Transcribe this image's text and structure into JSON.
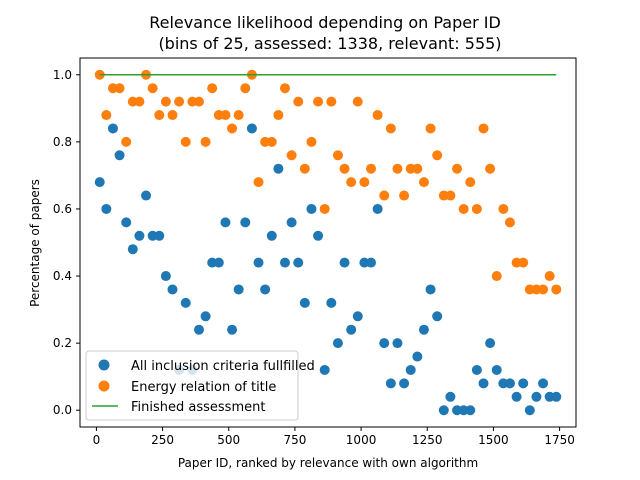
{
  "chart_data": {
    "type": "scatter",
    "title": "Relevance likelihood depending on Paper ID",
    "subtitle": "(bins of 25, assessed: 1338, relevant: 555)",
    "xlabel": "Paper ID, ranked by relevance with own algorithm",
    "ylabel": "Percentage of papers",
    "xlim": [
      -62,
      1812
    ],
    "ylim": [
      -0.05,
      1.05
    ],
    "x_ticks": [
      0,
      250,
      500,
      750,
      1000,
      1250,
      1500,
      1750
    ],
    "x_tick_labels": [
      "0",
      "250",
      "500",
      "750",
      "1000",
      "1250",
      "1500",
      "1750"
    ],
    "y_ticks": [
      0.0,
      0.2,
      0.4,
      0.6,
      0.8,
      1.0
    ],
    "y_tick_labels": [
      "0.0",
      "0.2",
      "0.4",
      "0.6",
      "0.8",
      "1.0"
    ],
    "grid": false,
    "legend_position": "lower-left",
    "series": [
      {
        "name": "All inclusion criteria fullfilled",
        "kind": "scatter",
        "color": "#1f77b4",
        "x": [
          12.5,
          37.5,
          62.5,
          87.5,
          112.5,
          137.5,
          162.5,
          187.5,
          212.5,
          237.5,
          262.5,
          287.5,
          312.5,
          337.5,
          362.5,
          387.5,
          412.5,
          437.5,
          462.5,
          487.5,
          512.5,
          537.5,
          562.5,
          587.5,
          612.5,
          637.5,
          662.5,
          687.5,
          712.5,
          737.5,
          762.5,
          787.5,
          812.5,
          837.5,
          862.5,
          887.5,
          912.5,
          937.5,
          962.5,
          987.5,
          1012.5,
          1037.5,
          1062.5,
          1087.5,
          1112.5,
          1137.5,
          1162.5,
          1187.5,
          1212.5,
          1237.5,
          1262.5,
          1287.5,
          1312.5,
          1337.5,
          1362.5,
          1387.5,
          1412.5,
          1437.5,
          1462.5,
          1487.5,
          1512.5,
          1537.5,
          1562.5,
          1587.5,
          1612.5,
          1637.5,
          1662.5,
          1687.5,
          1712.5,
          1737.5
        ],
        "y": [
          0.68,
          0.6,
          0.84,
          0.76,
          0.56,
          0.48,
          0.52,
          0.64,
          0.52,
          0.52,
          0.4,
          0.36,
          0.12,
          0.32,
          0.12,
          0.24,
          0.28,
          0.44,
          0.44,
          0.56,
          0.24,
          0.36,
          0.56,
          0.84,
          0.44,
          0.36,
          0.52,
          0.72,
          0.44,
          0.56,
          0.44,
          0.32,
          0.6,
          0.52,
          0.12,
          0.32,
          0.2,
          0.44,
          0.24,
          0.28,
          0.44,
          0.44,
          0.6,
          0.2,
          0.08,
          0.2,
          0.08,
          0.12,
          0.16,
          0.24,
          0.36,
          0.28,
          0.0,
          0.04,
          0.0,
          0.0,
          0.0,
          0.12,
          0.08,
          0.2,
          0.12,
          0.08,
          0.08,
          0.04,
          0.08,
          0.0,
          0.04,
          0.08,
          0.04,
          0.04
        ]
      },
      {
        "name": "Energy relation of title",
        "kind": "scatter",
        "color": "#ff7f0e",
        "x": [
          12.5,
          37.5,
          62.5,
          87.5,
          112.5,
          137.5,
          162.5,
          187.5,
          212.5,
          237.5,
          262.5,
          287.5,
          312.5,
          337.5,
          362.5,
          387.5,
          412.5,
          437.5,
          462.5,
          487.5,
          512.5,
          537.5,
          562.5,
          587.5,
          612.5,
          637.5,
          662.5,
          687.5,
          712.5,
          737.5,
          762.5,
          787.5,
          812.5,
          837.5,
          862.5,
          887.5,
          912.5,
          937.5,
          962.5,
          987.5,
          1012.5,
          1037.5,
          1062.5,
          1087.5,
          1112.5,
          1137.5,
          1162.5,
          1187.5,
          1212.5,
          1237.5,
          1262.5,
          1287.5,
          1312.5,
          1337.5,
          1362.5,
          1387.5,
          1412.5,
          1437.5,
          1462.5,
          1487.5,
          1512.5,
          1537.5,
          1562.5,
          1587.5,
          1612.5,
          1637.5,
          1662.5,
          1687.5,
          1712.5,
          1737.5
        ],
        "y": [
          1.0,
          0.88,
          0.96,
          0.96,
          0.8,
          0.92,
          0.92,
          1.0,
          0.96,
          0.88,
          0.92,
          0.88,
          0.92,
          0.8,
          0.92,
          0.92,
          0.8,
          0.96,
          0.88,
          0.88,
          0.84,
          0.88,
          0.96,
          1.0,
          0.68,
          0.8,
          0.8,
          0.88,
          0.96,
          0.76,
          0.92,
          0.72,
          0.8,
          0.92,
          0.6,
          0.92,
          0.76,
          0.72,
          0.68,
          0.92,
          0.68,
          0.72,
          0.88,
          0.64,
          0.84,
          0.72,
          0.64,
          0.72,
          0.72,
          0.68,
          0.84,
          0.76,
          0.64,
          0.64,
          0.72,
          0.6,
          0.68,
          0.6,
          0.84,
          0.72,
          0.4,
          0.6,
          0.56,
          0.44,
          0.44,
          0.36,
          0.36,
          0.36,
          0.4,
          0.36
        ]
      },
      {
        "name": "Finished assessment",
        "kind": "line",
        "color": "#2ca02c",
        "x": [
          12.5,
          1737.5
        ],
        "y": [
          1.0,
          1.0
        ]
      }
    ]
  }
}
